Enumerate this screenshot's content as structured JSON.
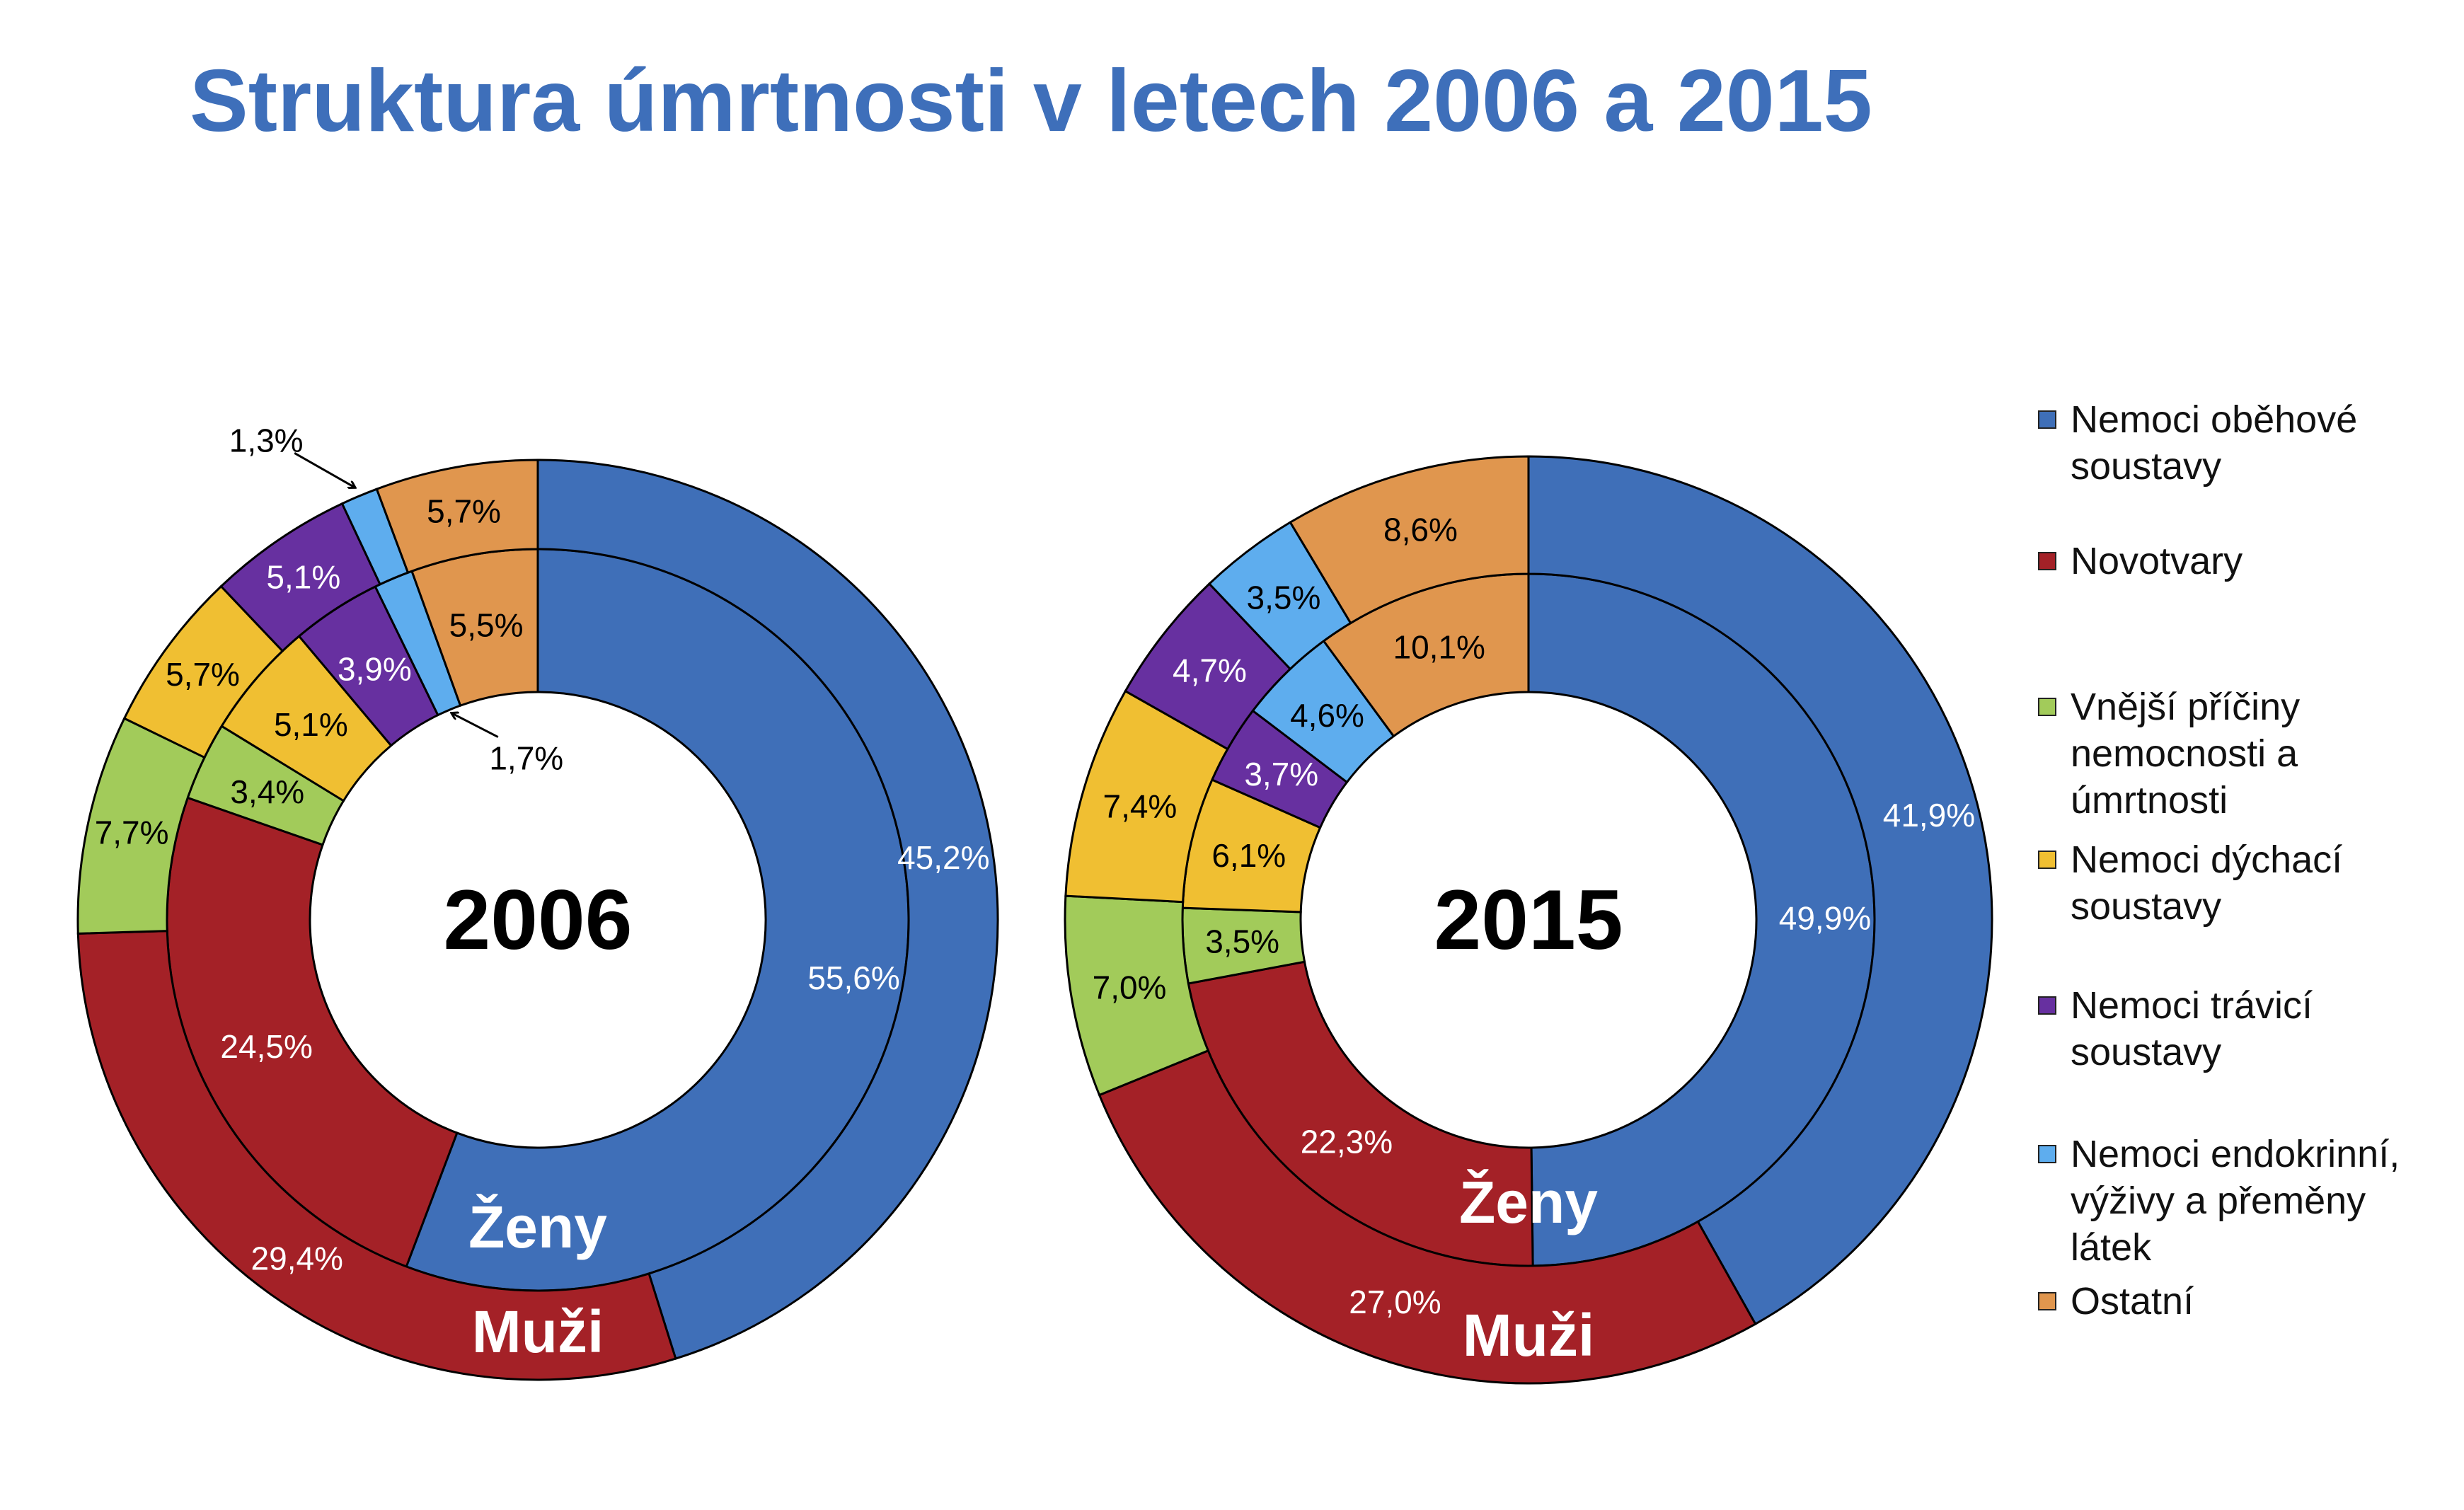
{
  "title": "Struktura úmrtnosti v letech 2006 a 2015",
  "legend": [
    {
      "label": "Nemoci oběhové\nsoustavy",
      "color": "#3F6FB8"
    },
    {
      "label": "Novotvary",
      "color": "#A42127"
    },
    {
      "label": "Vnější příčiny\nnemocnosti a\númrtnosti",
      "color": "#A2CB5A"
    },
    {
      "label": "Nemoci dýchací\nsoustavy",
      "color": "#F0BF32"
    },
    {
      "label": "Nemoci trávicí\nsoustavy",
      "color": "#6730A0"
    },
    {
      "label": "Nemoci endokrinní,\nvýživy a přeměny\nlátek",
      "color": "#5EADEE"
    },
    {
      "label": "Ostatní",
      "color": "#E0964E"
    }
  ],
  "chart_data": [
    {
      "type": "pie",
      "variant": "doughnut",
      "center_label": "2006",
      "ring_labels": {
        "inner": "Ženy",
        "outer": "Muži"
      },
      "categories": [
        "Nemoci oběhové soustavy",
        "Novotvary",
        "Vnější příčiny nemocnosti a úmrtnosti",
        "Nemoci dýchací soustavy",
        "Nemoci trávicí soustavy",
        "Nemoci endokrinní, výživy a přeměny látek",
        "Ostatní"
      ],
      "series": [
        {
          "name": "Ženy",
          "values": [
            55.6,
            24.5,
            3.4,
            5.1,
            3.9,
            1.7,
            5.5
          ],
          "labels": [
            "55,6%",
            "24,5%",
            "3,4%",
            "5,1%",
            "3,9%",
            "1,7%",
            "5,5%"
          ]
        },
        {
          "name": "Muži",
          "values": [
            45.2,
            29.4,
            7.7,
            5.7,
            5.1,
            1.3,
            5.7
          ],
          "labels": [
            "45,2%",
            "29,4%",
            "7,7%",
            "5,7%",
            "5,1%",
            "1,3%",
            "5,7%"
          ]
        }
      ]
    },
    {
      "type": "pie",
      "variant": "doughnut",
      "center_label": "2015",
      "ring_labels": {
        "inner": "Ženy",
        "outer": "Muži"
      },
      "categories": [
        "Nemoci oběhové soustavy",
        "Novotvary",
        "Vnější příčiny nemocnosti a úmrtnosti",
        "Nemoci dýchací soustavy",
        "Nemoci trávicí soustavy",
        "Nemoci endokrinní, výživy a přeměny látek",
        "Ostatní"
      ],
      "series": [
        {
          "name": "Ženy",
          "values": [
            49.9,
            22.3,
            3.5,
            6.1,
            3.7,
            4.6,
            10.1
          ],
          "labels": [
            "49,9%",
            "22,3%",
            "3,5%",
            "6,1%",
            "3,7%",
            "4,6%",
            "10,1%"
          ]
        },
        {
          "name": "Muži",
          "values": [
            41.9,
            27.0,
            7.0,
            7.4,
            4.7,
            3.5,
            8.6
          ],
          "labels": [
            "41,9%",
            "27,0%",
            "7,0%",
            "7,4%",
            "4,7%",
            "3,5%",
            "8,6%"
          ]
        }
      ]
    }
  ]
}
